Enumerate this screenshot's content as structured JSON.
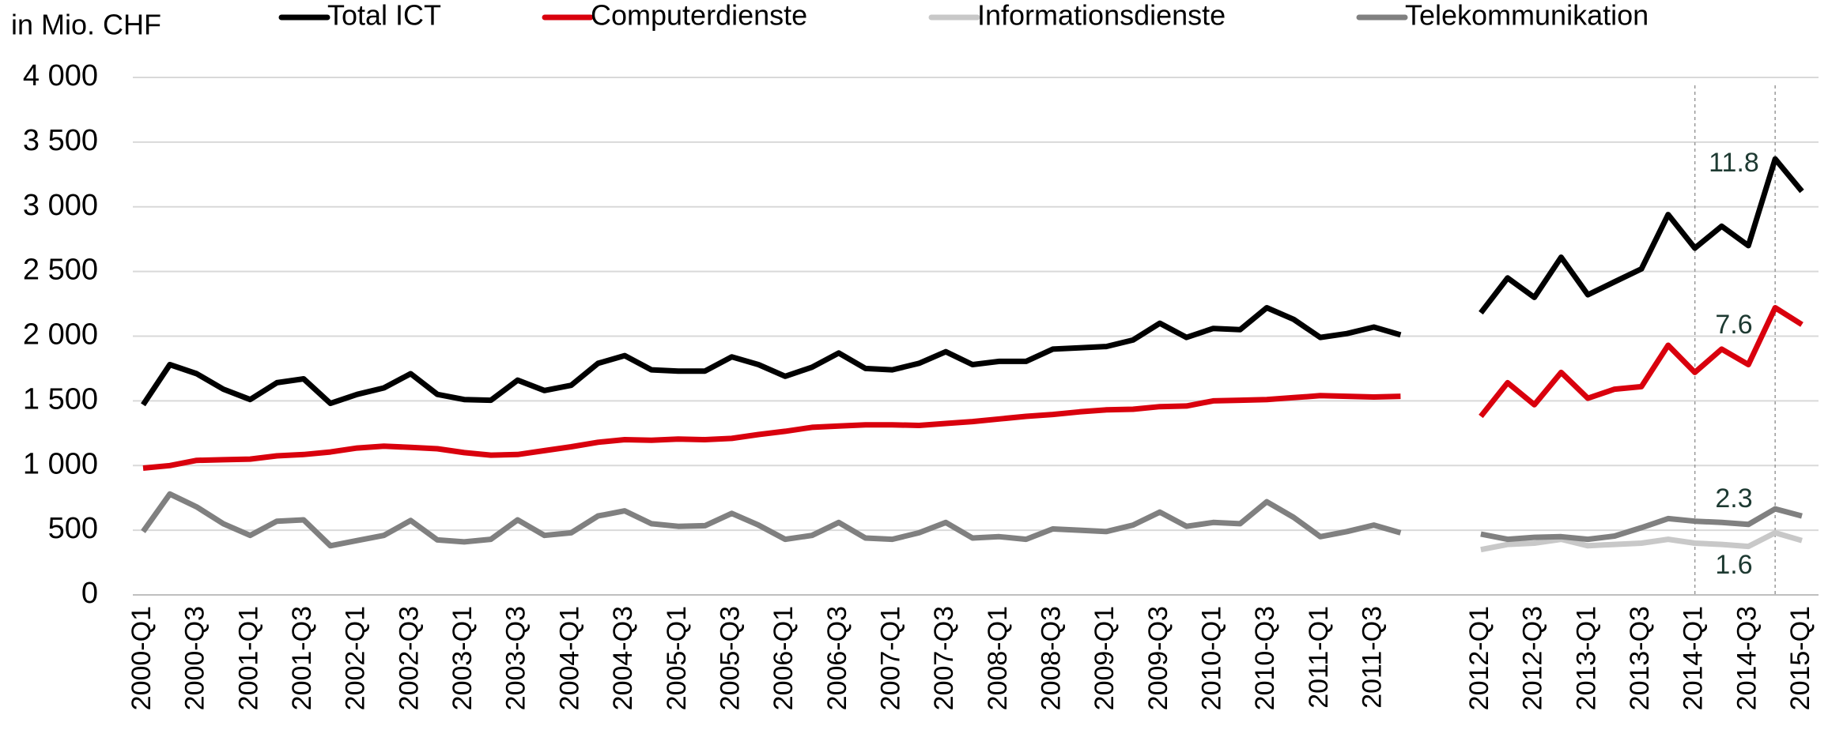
{
  "chart_data": {
    "type": "line",
    "y_axis_label": "in Mio. CHF",
    "categories": [
      "2000-Q1",
      null,
      "2000-Q3",
      null,
      "2001-Q1",
      null,
      "2001-Q3",
      null,
      "2002-Q1",
      null,
      "2002-Q3",
      null,
      "2003-Q1",
      null,
      "2003-Q3",
      null,
      "2004-Q1",
      null,
      "2004-Q3",
      null,
      "2005-Q1",
      null,
      "2005-Q3",
      null,
      "2006-Q1",
      null,
      "2006-Q3",
      null,
      "2007-Q1",
      null,
      "2007-Q3",
      null,
      "2008-Q1",
      null,
      "2008-Q3",
      null,
      "2009-Q1",
      null,
      "2009-Q3",
      null,
      "2010-Q1",
      null,
      "2010-Q3",
      null,
      "2011-Q1",
      null,
      "2011-Q3",
      null,
      null,
      null,
      "2012-Q1",
      null,
      "2012-Q3",
      null,
      "2013-Q1",
      null,
      "2013-Q3",
      null,
      "2014-Q1",
      null,
      "2014-Q3",
      null,
      "2015-Q1"
    ],
    "series": [
      {
        "name": "Total ICT",
        "color": "#000000",
        "values": [
          1470,
          1780,
          1710,
          1590,
          1510,
          1640,
          1670,
          1480,
          1550,
          1600,
          1710,
          1550,
          1510,
          1505,
          1660,
          1580,
          1620,
          1790,
          1850,
          1740,
          1730,
          1730,
          1840,
          1780,
          1690,
          1760,
          1870,
          1750,
          1740,
          1790,
          1880,
          1780,
          1805,
          1805,
          1900,
          1910,
          1920,
          1970,
          2100,
          1990,
          2060,
          2050,
          2220,
          2130,
          1990,
          2020,
          2070,
          2010,
          null,
          null,
          2180,
          2450,
          2300,
          2610,
          2320,
          2420,
          2520,
          2940,
          2680,
          2850,
          2700,
          3370,
          3120
        ]
      },
      {
        "name": "Computerdienste",
        "color": "#d9000d",
        "values": [
          980,
          1000,
          1040,
          1045,
          1050,
          1075,
          1085,
          1105,
          1135,
          1150,
          1140,
          1130,
          1100,
          1080,
          1085,
          1115,
          1145,
          1180,
          1200,
          1195,
          1205,
          1200,
          1210,
          1240,
          1265,
          1295,
          1305,
          1315,
          1315,
          1310,
          1325,
          1340,
          1360,
          1380,
          1395,
          1415,
          1430,
          1435,
          1455,
          1460,
          1500,
          1505,
          1510,
          1525,
          1540,
          1535,
          1530,
          1535,
          null,
          null,
          1380,
          1640,
          1470,
          1720,
          1520,
          1590,
          1610,
          1930,
          1720,
          1900,
          1780,
          2220,
          2090
        ]
      },
      {
        "name": "Informationsdienste",
        "color": "#c8c8c8",
        "values": [
          null,
          null,
          null,
          null,
          null,
          null,
          null,
          null,
          null,
          null,
          null,
          null,
          null,
          null,
          null,
          null,
          null,
          null,
          null,
          null,
          null,
          null,
          null,
          null,
          null,
          null,
          null,
          null,
          null,
          null,
          null,
          null,
          null,
          null,
          null,
          null,
          null,
          null,
          null,
          null,
          null,
          null,
          null,
          null,
          null,
          null,
          null,
          null,
          null,
          null,
          350,
          390,
          400,
          430,
          380,
          390,
          400,
          430,
          400,
          390,
          375,
          480,
          420
        ]
      },
      {
        "name": "Telekommunikation",
        "color": "#808080",
        "values": [
          490,
          780,
          680,
          550,
          460,
          570,
          580,
          380,
          420,
          460,
          575,
          425,
          410,
          430,
          580,
          460,
          480,
          610,
          650,
          550,
          530,
          535,
          630,
          540,
          430,
          460,
          560,
          440,
          430,
          480,
          560,
          440,
          450,
          430,
          510,
          500,
          490,
          540,
          640,
          530,
          560,
          550,
          720,
          600,
          450,
          490,
          540,
          480,
          null,
          null,
          470,
          430,
          445,
          450,
          430,
          455,
          520,
          590,
          570,
          560,
          545,
          665,
          610
        ]
      }
    ],
    "annotations": [
      "11.8",
      "7.6",
      "2.3",
      "1.6"
    ],
    "ylim": [
      0,
      4000
    ],
    "yticks": [
      0,
      500,
      {
        "value": 1000,
        "label": "1 000"
      },
      {
        "value": 1500,
        "label": "1 500"
      },
      {
        "value": 2000,
        "label": "2 000"
      },
      {
        "value": 2500,
        "label": "2 500"
      },
      {
        "value": 3000,
        "label": "3 000"
      },
      {
        "value": 3500,
        "label": "3 500"
      },
      {
        "value": 4000,
        "label": "4 000"
      }
    ],
    "grid": true
  }
}
